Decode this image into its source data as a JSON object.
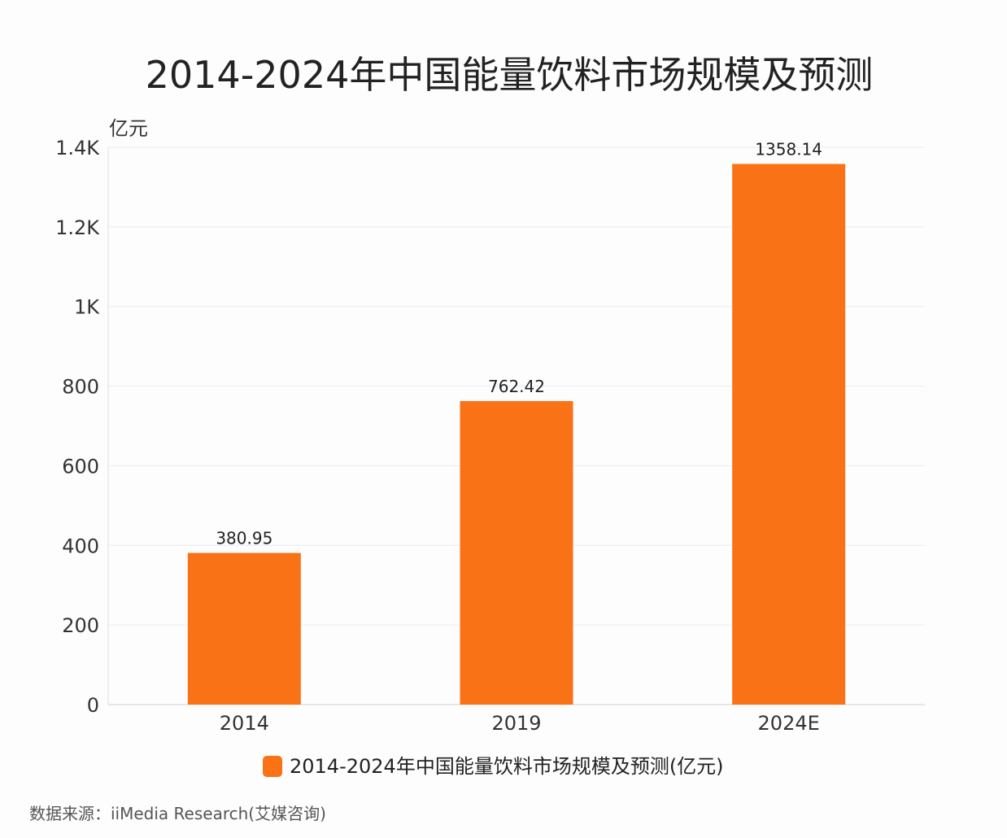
{
  "chart_data": {
    "type": "bar",
    "title": "2014-2024年中国能量饮料市场规模及预测",
    "ylabel": "亿元",
    "xlabel": "",
    "categories": [
      "2014",
      "2019",
      "2024E"
    ],
    "series": [
      {
        "name": "2014-2024年中国能量饮料市场规模及预测(亿元)",
        "values": [
          380.95,
          762.42,
          1358.14
        ],
        "color": "#f97316"
      }
    ],
    "data_labels": [
      "380.95",
      "762.42",
      "1358.14"
    ],
    "ylim": [
      0,
      1400
    ],
    "yticks": [
      0,
      200,
      400,
      600,
      800,
      1000,
      1200,
      1400
    ],
    "ytick_labels": [
      "0",
      "200",
      "400",
      "600",
      "800",
      "1K",
      "1.2K",
      "1.4K"
    ],
    "grid": true,
    "legend_position": "bottom"
  },
  "source": "数据来源：iiMedia Research(艾媒咨询)"
}
